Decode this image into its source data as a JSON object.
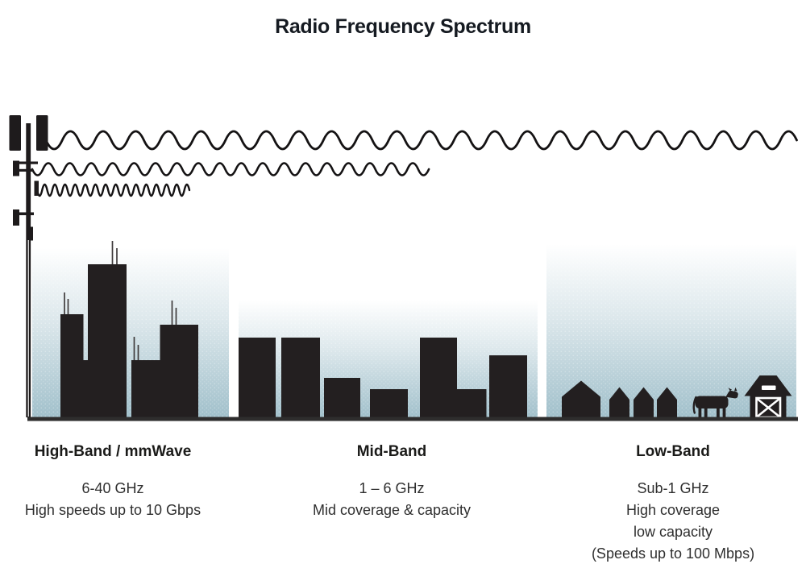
{
  "title": "Radio Frequency Spectrum",
  "bands": [
    {
      "label": "High-Band / mmWave",
      "lines": [
        "6-40 GHz",
        "High speeds up to 10 Gbps"
      ],
      "scene_icon": "skyscrapers-icon",
      "wave_icon": "high-frequency-wave"
    },
    {
      "label": "Mid-Band",
      "lines": [
        "1 – 6 GHz",
        "Mid coverage & capacity"
      ],
      "scene_icon": "mid-rise-buildings-icon",
      "wave_icon": "mid-frequency-wave"
    },
    {
      "label": "Low-Band",
      "lines": [
        "Sub-1 GHz",
        "High coverage",
        "low capacity",
        "(Speeds up to 100 Mbps)"
      ],
      "scene_icon": "rural-houses-cow-barn-icon",
      "wave_icon": "low-frequency-wave"
    }
  ],
  "scene": {
    "icons": [
      "cell-tower-icon",
      "low-frequency-wave",
      "mid-frequency-wave",
      "high-frequency-wave",
      "skyscrapers-icon",
      "mid-rise-buildings-icon",
      "houses-icon",
      "cow-icon",
      "barn-icon",
      "ground-line"
    ],
    "colors": {
      "silhouette": "#231f20",
      "wave_stroke": "#141213",
      "sky_gradient_top": "#ffffff",
      "sky_gradient_bottom": "#a1c0cb",
      "ground": "#2e2d2d",
      "text": "#2f2f2f",
      "band_name_text": "#1b1b19",
      "title_text": "#151a21"
    }
  }
}
